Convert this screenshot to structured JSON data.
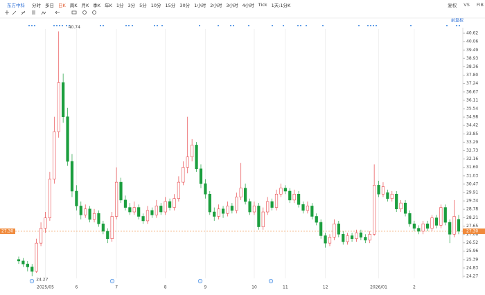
{
  "toolbar": {
    "brand": "东方中科",
    "periods": [
      "分时",
      "多日",
      "日K",
      "周K",
      "月K",
      "季K",
      "年K",
      "1分",
      "3分",
      "5分",
      "10分",
      "15分",
      "30分",
      "1小时",
      "2小时",
      "3小时",
      "4小时",
      "Tick",
      "1天:1分K"
    ],
    "active": "日K",
    "right": [
      "复权",
      "VS",
      "FIB"
    ]
  },
  "chart_data": {
    "type": "candlestick",
    "adjust_label": "前复权",
    "up_color": "#e8474b",
    "down_color": "#1b9e3e",
    "categories": [
      null,
      null,
      null,
      null,
      null,
      null,
      "2025/05",
      null,
      null,
      null,
      null,
      null,
      null,
      "6",
      null,
      null,
      null,
      null,
      null,
      null,
      null,
      null,
      "7",
      null,
      null,
      null,
      null,
      null,
      null,
      null,
      null,
      null,
      null,
      "8",
      null,
      null,
      null,
      null,
      null,
      null,
      null,
      null,
      "9",
      null,
      null,
      null,
      null,
      null,
      null,
      null,
      null,
      null,
      null,
      "10",
      null,
      null,
      null,
      null,
      null,
      null,
      "11",
      null,
      null,
      null,
      null,
      null,
      null,
      null,
      null,
      "12",
      null,
      null,
      null,
      null,
      null,
      null,
      null,
      null,
      null,
      null,
      null,
      "2026/01",
      null,
      null,
      null,
      null,
      null,
      null,
      null,
      "2",
      null,
      null,
      null,
      null,
      null,
      null,
      null,
      null,
      null,
      null
    ],
    "ohlc": [
      [
        25.4,
        25.6,
        25.1,
        25.3
      ],
      [
        25.3,
        25.5,
        24.9,
        25.1
      ],
      [
        25.1,
        25.3,
        24.6,
        24.9
      ],
      [
        24.9,
        25.1,
        24.27,
        24.6
      ],
      [
        24.6,
        26.8,
        24.5,
        26.5
      ],
      [
        26.5,
        27.9,
        26.3,
        27.5
      ],
      [
        27.5,
        28.6,
        27.2,
        28.2
      ],
      [
        28.2,
        31.3,
        28.0,
        30.8
      ],
      [
        30.8,
        35.0,
        30.5,
        34.0
      ],
      [
        34.0,
        40.74,
        33.6,
        37.3
      ],
      [
        37.3,
        37.9,
        34.6,
        35.0
      ],
      [
        35.0,
        35.6,
        31.7,
        32.0
      ],
      [
        32.0,
        32.5,
        29.6,
        30.0
      ],
      [
        30.0,
        30.4,
        28.7,
        29.0
      ],
      [
        29.0,
        29.3,
        28.1,
        28.4
      ],
      [
        28.4,
        29.1,
        28.2,
        28.8
      ],
      [
        28.8,
        29.0,
        27.9,
        28.1
      ],
      [
        28.1,
        28.8,
        27.9,
        28.5
      ],
      [
        28.5,
        28.7,
        27.6,
        27.8
      ],
      [
        27.8,
        28.0,
        27.1,
        27.3
      ],
      [
        27.3,
        27.5,
        26.5,
        26.8
      ],
      [
        26.8,
        28.6,
        26.6,
        28.3
      ],
      [
        28.3,
        31.6,
        28.1,
        30.6
      ],
      [
        30.6,
        30.9,
        29.2,
        29.4
      ],
      [
        29.4,
        29.7,
        28.7,
        28.9
      ],
      [
        28.9,
        29.2,
        28.4,
        28.6
      ],
      [
        28.6,
        29.3,
        28.4,
        28.9
      ],
      [
        28.9,
        29.1,
        28.1,
        28.3
      ],
      [
        28.3,
        28.5,
        27.8,
        28.0
      ],
      [
        28.0,
        29.0,
        27.8,
        28.7
      ],
      [
        28.7,
        28.9,
        28.2,
        28.4
      ],
      [
        28.4,
        29.4,
        28.2,
        29.0
      ],
      [
        29.0,
        29.2,
        28.4,
        28.6
      ],
      [
        28.6,
        29.6,
        28.4,
        29.3
      ],
      [
        29.3,
        29.5,
        28.7,
        28.9
      ],
      [
        28.9,
        29.8,
        28.7,
        29.5
      ],
      [
        29.5,
        31.0,
        29.3,
        30.6
      ],
      [
        30.6,
        32.0,
        30.4,
        31.6
      ],
      [
        31.6,
        35.0,
        31.2,
        32.3
      ],
      [
        32.3,
        33.5,
        32.0,
        33.1
      ],
      [
        33.1,
        33.3,
        31.3,
        31.5
      ],
      [
        31.5,
        31.8,
        30.2,
        30.5
      ],
      [
        30.5,
        30.8,
        29.5,
        29.8
      ],
      [
        29.8,
        30.0,
        28.4,
        28.6
      ],
      [
        28.6,
        28.9,
        28.0,
        28.3
      ],
      [
        28.3,
        29.1,
        28.1,
        28.8
      ],
      [
        28.8,
        29.0,
        28.2,
        28.5
      ],
      [
        28.5,
        29.3,
        28.3,
        29.0
      ],
      [
        29.0,
        29.2,
        28.5,
        28.7
      ],
      [
        28.7,
        29.9,
        28.5,
        29.6
      ],
      [
        29.6,
        31.9,
        29.4,
        30.2
      ],
      [
        30.2,
        30.5,
        29.1,
        29.3
      ],
      [
        29.3,
        29.5,
        28.4,
        28.6
      ],
      [
        28.6,
        29.3,
        28.4,
        29.0
      ],
      [
        29.0,
        29.2,
        27.4,
        27.6
      ],
      [
        27.6,
        28.9,
        27.4,
        28.6
      ],
      [
        28.6,
        29.6,
        28.4,
        29.3
      ],
      [
        29.3,
        29.5,
        28.7,
        28.9
      ],
      [
        28.9,
        30.1,
        28.7,
        29.8
      ],
      [
        29.8,
        30.5,
        29.6,
        30.2
      ],
      [
        30.2,
        30.4,
        29.8,
        30.0
      ],
      [
        30.0,
        30.2,
        29.2,
        29.4
      ],
      [
        29.4,
        30.1,
        29.2,
        29.8
      ],
      [
        29.8,
        30.0,
        28.9,
        29.1
      ],
      [
        29.1,
        29.3,
        28.5,
        28.7
      ],
      [
        28.7,
        29.3,
        28.5,
        29.0
      ],
      [
        29.0,
        29.2,
        28.1,
        28.3
      ],
      [
        28.3,
        28.5,
        27.7,
        27.9
      ],
      [
        27.9,
        28.1,
        26.8,
        27.0
      ],
      [
        27.0,
        27.2,
        26.2,
        26.5
      ],
      [
        26.5,
        27.1,
        26.3,
        26.9
      ],
      [
        26.9,
        28.1,
        26.7,
        27.8
      ],
      [
        27.8,
        28.0,
        26.9,
        27.1
      ],
      [
        27.1,
        27.3,
        26.4,
        26.6
      ],
      [
        26.6,
        27.2,
        26.4,
        27.0
      ],
      [
        27.0,
        27.2,
        26.6,
        26.8
      ],
      [
        26.8,
        27.4,
        26.6,
        27.2
      ],
      [
        27.2,
        27.4,
        26.7,
        26.9
      ],
      [
        26.9,
        27.1,
        26.5,
        26.7
      ],
      [
        26.7,
        27.3,
        26.5,
        27.1
      ],
      [
        27.1,
        31.8,
        27.0,
        30.4
      ],
      [
        30.4,
        30.7,
        29.6,
        29.8
      ],
      [
        29.8,
        30.6,
        29.6,
        30.3
      ],
      [
        29.9,
        30.1,
        29.3,
        29.5
      ],
      [
        29.5,
        30.0,
        29.3,
        29.8
      ],
      [
        29.8,
        30.0,
        28.6,
        28.8
      ],
      [
        28.8,
        29.4,
        28.6,
        29.2
      ],
      [
        29.2,
        29.4,
        28.3,
        28.5
      ],
      [
        28.5,
        28.7,
        27.6,
        27.8
      ],
      [
        27.8,
        28.0,
        27.3,
        27.5
      ],
      [
        27.5,
        27.7,
        27.1,
        27.3
      ],
      [
        27.3,
        28.0,
        27.1,
        27.8
      ],
      [
        27.8,
        28.0,
        27.3,
        27.5
      ],
      [
        27.5,
        28.4,
        27.3,
        28.2
      ],
      [
        28.2,
        28.4,
        27.5,
        27.7
      ],
      [
        27.7,
        29.1,
        27.5,
        28.9
      ],
      [
        28.9,
        29.1,
        27.7,
        27.9
      ],
      [
        27.9,
        28.1,
        26.5,
        27.1
      ],
      [
        27.1,
        29.4,
        26.9,
        28.3
      ],
      [
        28.1,
        28.4,
        27.1,
        27.3
      ]
    ],
    "ylim": [
      24.27,
      40.62
    ],
    "yticks": [
      40.62,
      40.06,
      39.49,
      38.93,
      38.36,
      {
        "value": 37.8,
        "label": "37.80"
      },
      37.24,
      36.67,
      36.11,
      35.54,
      34.98,
      34.42,
      33.85,
      33.29,
      32.73,
      32.16,
      {
        "value": 31.6,
        "label": "31.60"
      },
      31.03,
      30.47,
      29.91,
      29.34,
      28.78,
      28.21,
      27.65,
      27.08,
      26.52,
      25.96,
      25.39,
      24.83,
      24.27
    ],
    "high_label": 40.74,
    "low_label": 24.27,
    "last_price": {
      "value": 27.3,
      "label": "27.30"
    },
    "last_color": "#f08a3c"
  }
}
